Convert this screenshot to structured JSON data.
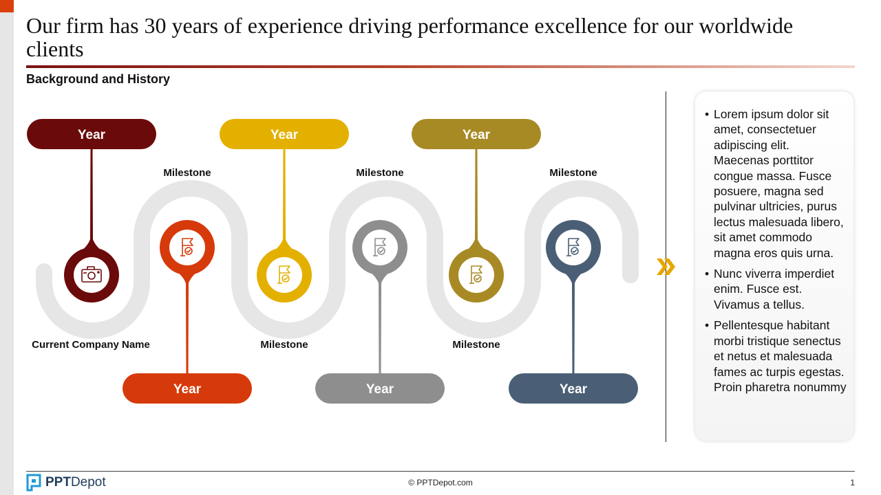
{
  "title": "Our firm has 30 years of experience driving performance excellence for our worldwide clients",
  "subtitle": "Background and History",
  "timeline": [
    {
      "year": "Year",
      "label": "Current Company Name",
      "color": "#6b0a0a",
      "icon": "camera-icon"
    },
    {
      "year": "Year",
      "label": "Milestone",
      "color": "#d63a0a",
      "icon": "flag-icon"
    },
    {
      "year": "Year",
      "label": "Milestone",
      "color": "#e3b000",
      "icon": "flag-icon"
    },
    {
      "year": "Year",
      "label": "Milestone",
      "color": "#8e8e8e",
      "icon": "flag-icon"
    },
    {
      "year": "Year",
      "label": "Milestone",
      "color": "#a88a25",
      "icon": "flag-icon"
    },
    {
      "year": "Year",
      "label": "Milestone",
      "color": "#4a5f75",
      "icon": "flag-icon"
    }
  ],
  "notes": [
    "Lorem ipsum dolor sit amet, consectetuer adipiscing elit. Maecenas porttitor congue massa. Fusce posuere, magna sed pulvinar ultricies, purus lectus malesuada libero, sit amet commodo magna eros quis urna.",
    "Nunc viverra imperdiet enim. Fusce est. Vivamus a tellus.",
    "Pellentesque habitant morbi tristique senectus et netus et malesuada fames ac turpis egestas. Proin pharetra nonummy"
  ],
  "footer": {
    "logo_bold": "PPT",
    "logo_rest": "Depot",
    "copyright": "© PPTDepot.com",
    "page_number": "1"
  },
  "colors": {
    "path": "#e6e6e6",
    "accent": "#e8a600"
  }
}
